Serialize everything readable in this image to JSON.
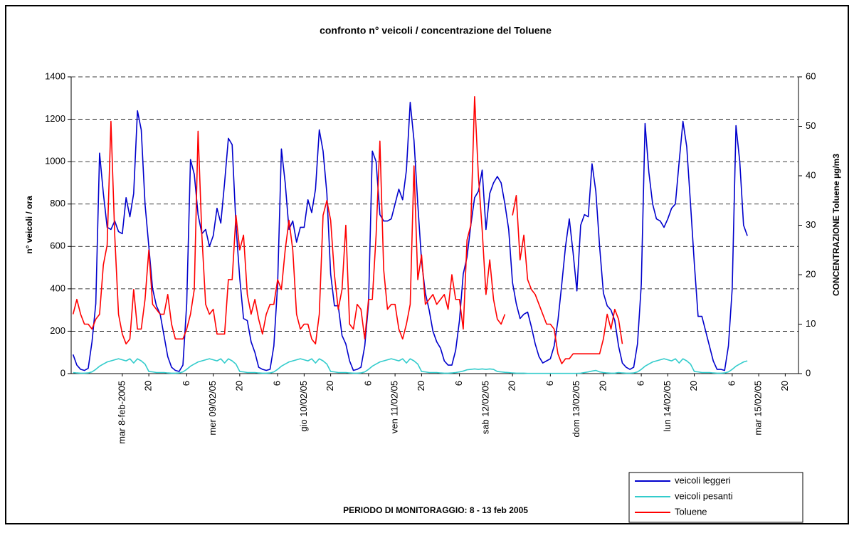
{
  "chart_data": {
    "type": "line",
    "title": "confronto n° veicoli / concentrazione del Toluene",
    "subtitle": "PERIODO DI MONITORAGGIO: 8 - 13 feb 2005",
    "y_label": "n° veicoli / ora",
    "y2_label": "CONCENTRAZIONE Toluene µg/m3",
    "categories": [
      null,
      null,
      null,
      null,
      null,
      null,
      null,
      null,
      null,
      null,
      null,
      null,
      null,
      "mar 8-feb-2005",
      null,
      null,
      null,
      null,
      null,
      null,
      "20",
      null,
      null,
      null,
      null,
      null,
      null,
      null,
      null,
      null,
      "6",
      null,
      null,
      null,
      null,
      null,
      null,
      "mer 09/02/05",
      null,
      null,
      null,
      null,
      null,
      null,
      "20",
      null,
      null,
      null,
      null,
      null,
      null,
      null,
      null,
      null,
      "6",
      null,
      null,
      null,
      null,
      null,
      null,
      "gio 10/02/05",
      null,
      null,
      null,
      null,
      null,
      null,
      "20",
      null,
      null,
      null,
      null,
      null,
      null,
      null,
      null,
      null,
      "6",
      null,
      null,
      null,
      null,
      null,
      null,
      "ven 11/02/05",
      null,
      null,
      null,
      null,
      null,
      null,
      "20",
      null,
      null,
      null,
      null,
      null,
      null,
      null,
      null,
      null,
      "6",
      null,
      null,
      null,
      null,
      null,
      null,
      "sab 12/02/05",
      null,
      null,
      null,
      null,
      null,
      null,
      "20",
      null,
      null,
      null,
      null,
      null,
      null,
      null,
      null,
      null,
      "6",
      null,
      null,
      null,
      null,
      null,
      null,
      "dom 13/02/05",
      null,
      null,
      null,
      null,
      null,
      null,
      "20",
      null,
      null,
      null,
      null,
      null,
      null,
      null,
      null,
      null,
      "6",
      null,
      null,
      null,
      null,
      null,
      null,
      "lun 14/02/05",
      null,
      null,
      null,
      null,
      null,
      null,
      "20",
      null,
      null,
      null,
      null,
      null,
      null,
      null,
      null,
      null,
      "6",
      null,
      null,
      null,
      null,
      null,
      null,
      "mar 15/02/05",
      null,
      null,
      null,
      null,
      null,
      null,
      "20",
      null,
      null,
      null
    ],
    "series": [
      {
        "name": "veicoli leggeri",
        "color": "#0000cc",
        "values": [
          90,
          40,
          20,
          15,
          25,
          150,
          330,
          1040,
          850,
          690,
          680,
          720,
          670,
          660,
          830,
          740,
          850,
          1240,
          1150,
          800,
          600,
          400,
          320,
          280,
          180,
          80,
          30,
          15,
          10,
          40,
          330,
          1010,
          940,
          750,
          660,
          680,
          600,
          650,
          780,
          710,
          900,
          1110,
          1080,
          700,
          450,
          260,
          250,
          150,
          100,
          30,
          20,
          15,
          20,
          130,
          420,
          1060,
          900,
          680,
          720,
          620,
          690,
          690,
          820,
          760,
          870,
          1150,
          1050,
          850,
          470,
          320,
          320,
          180,
          140,
          60,
          15,
          20,
          30,
          130,
          330,
          1050,
          1000,
          750,
          720,
          720,
          730,
          800,
          870,
          820,
          960,
          1280,
          1100,
          800,
          530,
          380,
          300,
          200,
          150,
          120,
          60,
          40,
          40,
          110,
          250,
          470,
          550,
          700,
          830,
          860,
          960,
          680,
          850,
          900,
          930,
          900,
          800,
          680,
          430,
          330,
          260,
          280,
          290,
          220,
          140,
          80,
          50,
          60,
          70,
          130,
          250,
          420,
          600,
          730,
          570,
          390,
          700,
          750,
          740,
          990,
          860,
          600,
          380,
          320,
          300,
          250,
          130,
          50,
          30,
          20,
          30,
          140,
          420,
          1180,
          950,
          800,
          730,
          720,
          690,
          730,
          780,
          800,
          1000,
          1190,
          1070,
          800,
          520,
          270,
          270,
          200,
          130,
          60,
          20,
          20,
          15,
          130,
          400,
          1170,
          1000,
          700,
          650,
          null,
          null,
          null,
          null,
          null,
          null,
          null,
          null,
          null,
          null,
          null,
          null,
          null
        ]
      },
      {
        "name": "veicoli pesanti",
        "color": "#33cccc",
        "values": [
          5,
          3,
          2,
          2,
          3,
          8,
          20,
          35,
          45,
          55,
          60,
          65,
          70,
          65,
          60,
          70,
          50,
          70,
          60,
          45,
          10,
          8,
          5,
          5,
          5,
          3,
          2,
          2,
          3,
          8,
          20,
          35,
          45,
          55,
          60,
          65,
          70,
          65,
          60,
          70,
          50,
          70,
          60,
          45,
          10,
          8,
          5,
          5,
          5,
          3,
          2,
          2,
          3,
          8,
          20,
          35,
          45,
          55,
          60,
          65,
          70,
          65,
          60,
          70,
          50,
          70,
          60,
          45,
          10,
          8,
          5,
          5,
          5,
          3,
          2,
          2,
          3,
          8,
          20,
          35,
          45,
          55,
          60,
          65,
          70,
          65,
          60,
          70,
          50,
          70,
          60,
          45,
          10,
          8,
          5,
          5,
          5,
          3,
          2,
          2,
          3,
          5,
          8,
          12,
          18,
          20,
          22,
          20,
          22,
          20,
          22,
          20,
          10,
          8,
          6,
          5,
          3,
          2,
          2,
          2,
          1,
          1,
          1,
          1,
          1,
          1,
          1,
          1,
          1,
          1,
          1,
          1,
          1,
          1,
          2,
          5,
          8,
          12,
          15,
          8,
          5,
          3,
          2,
          2,
          5,
          3,
          2,
          2,
          3,
          8,
          20,
          35,
          45,
          55,
          60,
          65,
          70,
          65,
          60,
          70,
          50,
          70,
          60,
          45,
          10,
          8,
          5,
          5,
          5,
          3,
          2,
          2,
          3,
          8,
          20,
          35,
          45,
          55,
          60,
          null,
          null,
          null,
          null,
          null,
          null,
          null,
          null,
          null,
          null,
          null,
          null,
          null
        ]
      },
      {
        "name": "Toluene",
        "color": "#ff0000",
        "axis": "y2",
        "values": [
          12,
          15,
          12,
          10,
          10,
          9,
          11,
          12,
          22,
          26,
          51,
          28,
          12,
          8,
          6,
          7,
          17,
          9,
          9,
          15,
          25,
          14,
          13,
          12,
          12,
          16,
          10,
          7,
          7,
          7,
          9,
          12,
          17,
          49,
          28,
          14,
          12,
          13,
          8,
          8,
          8,
          19,
          19,
          32,
          25,
          28,
          16,
          12,
          15,
          11,
          8,
          12,
          14,
          14,
          19,
          17,
          25,
          31,
          25,
          12,
          9,
          10,
          10,
          7,
          6,
          12,
          32,
          35,
          31,
          20,
          13,
          17,
          30,
          10,
          9,
          14,
          13,
          7,
          15,
          15,
          28,
          47,
          21,
          13,
          14,
          14,
          9,
          7,
          10,
          14,
          42,
          19,
          24,
          14,
          15,
          16,
          14,
          15,
          16,
          13,
          20,
          15,
          15,
          9,
          27,
          30,
          56,
          40,
          29,
          16,
          23,
          15,
          11,
          10,
          12,
          null,
          32,
          36,
          23,
          28,
          19,
          17,
          16,
          14,
          12,
          10,
          10,
          9,
          4,
          2,
          3,
          3,
          4,
          4,
          4,
          4,
          4,
          4,
          4,
          4,
          7,
          12,
          9,
          13,
          11,
          6,
          null,
          null,
          null,
          null,
          null,
          null,
          null,
          null,
          null,
          null,
          null,
          null,
          null,
          null,
          null,
          null,
          null,
          null,
          null,
          null,
          null,
          null,
          null,
          null,
          null,
          null,
          null,
          null,
          null,
          null,
          null,
          null,
          null,
          null,
          null,
          null,
          null,
          null,
          null,
          null,
          null,
          null,
          null,
          null,
          null,
          null
        ]
      }
    ],
    "ylim": [
      0,
      1400
    ],
    "yticks": [
      0,
      200,
      400,
      600,
      800,
      1000,
      1200,
      1400
    ],
    "y2lim": [
      0,
      60
    ],
    "y2ticks": [
      0,
      10,
      20,
      30,
      40,
      50,
      60
    ],
    "grid": true,
    "legend": "bottom-right"
  }
}
